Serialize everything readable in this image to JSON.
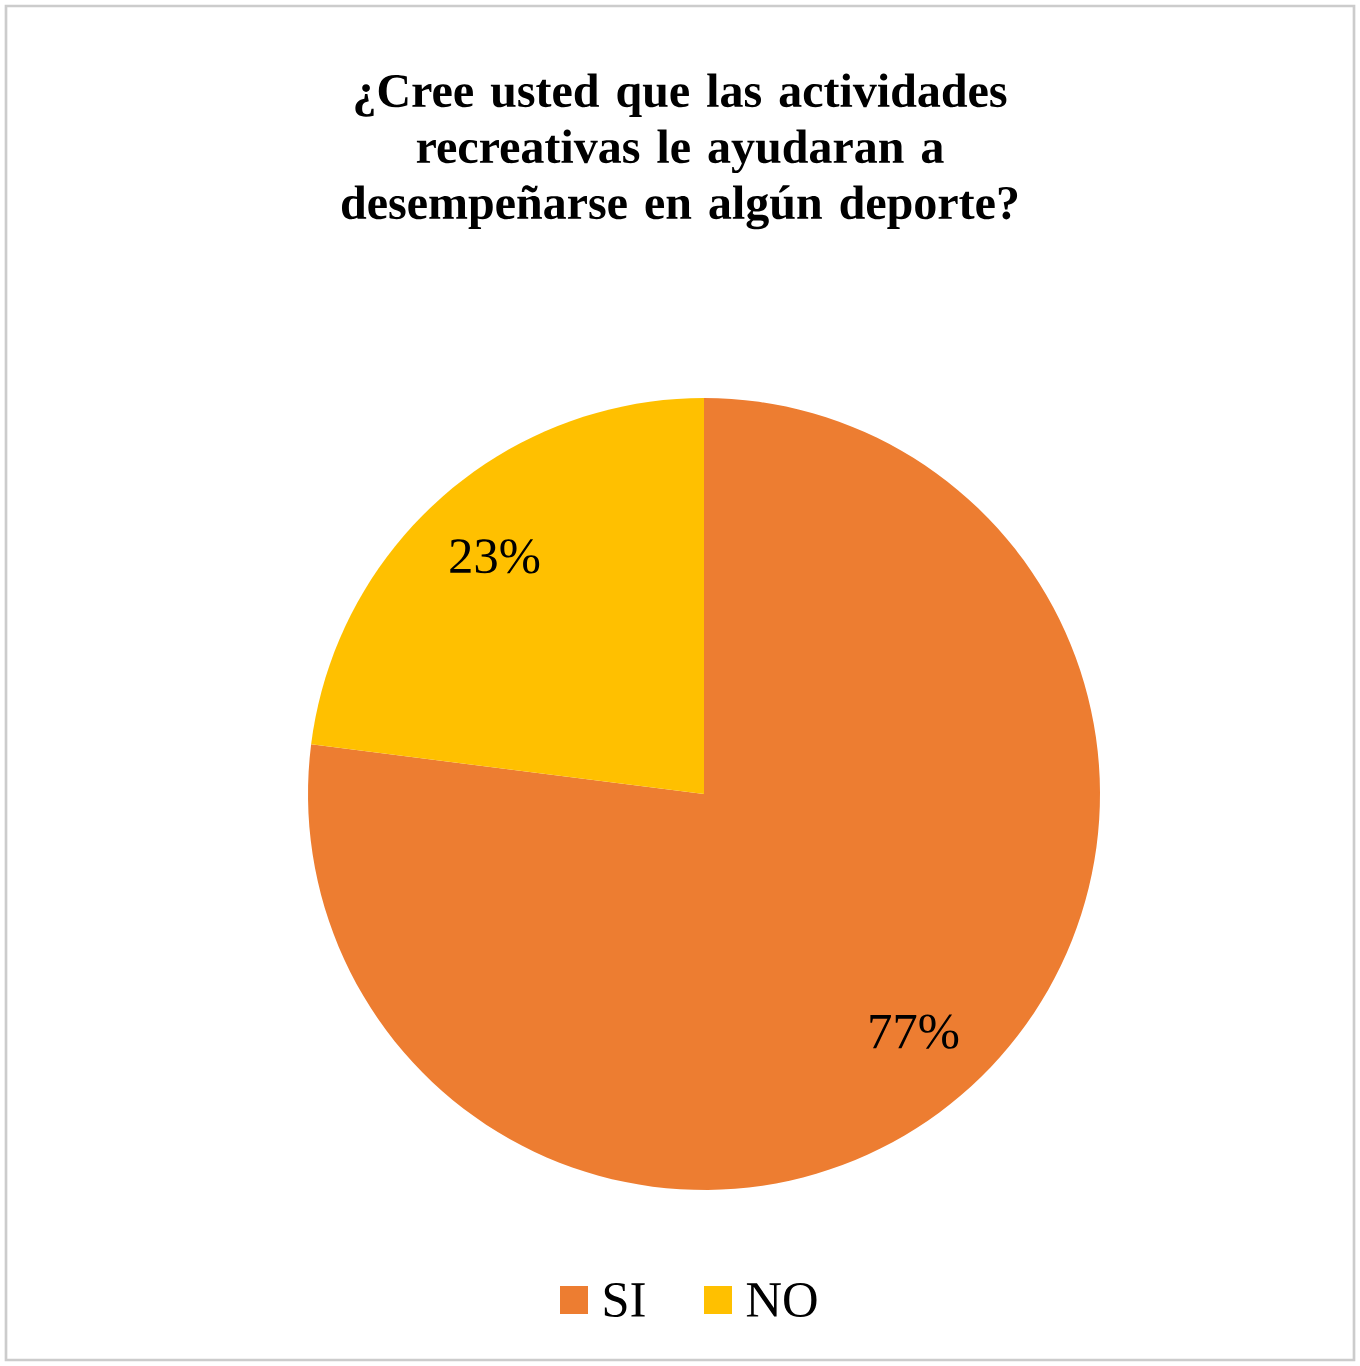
{
  "chart_data": {
    "type": "pie",
    "title": "¿Cree usted que las actividades recreativas le ayudaran a desempeñarse en algún deporte?",
    "categories": [
      "SI",
      "NO"
    ],
    "values": [
      77,
      23
    ],
    "colors": [
      "#ed7d31",
      "#ffc000"
    ],
    "value_labels": [
      "77%",
      "23%"
    ],
    "legend": "bottom"
  }
}
